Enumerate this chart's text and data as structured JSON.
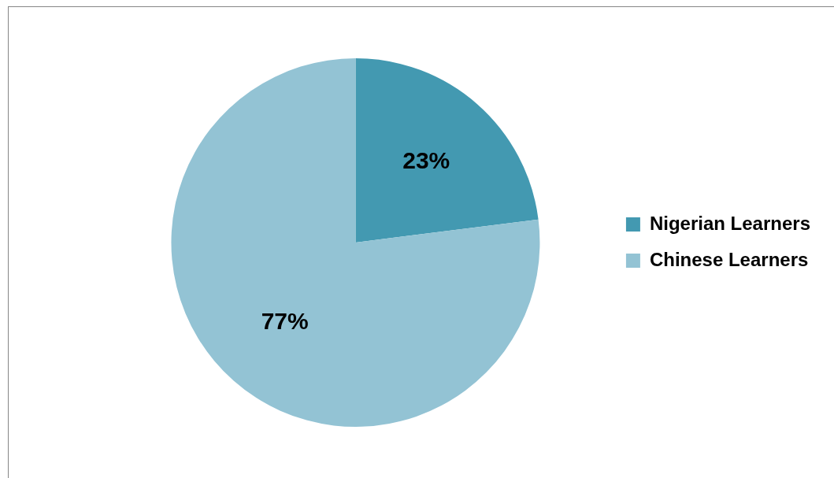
{
  "chart_data": {
    "type": "pie",
    "categories": [
      "Nigerian Learners",
      "Chinese Learners"
    ],
    "values": [
      23,
      77
    ],
    "colors": [
      "#4399b1",
      "#93c3d4"
    ],
    "value_labels": [
      "23%",
      "77%"
    ],
    "legend": "right"
  }
}
